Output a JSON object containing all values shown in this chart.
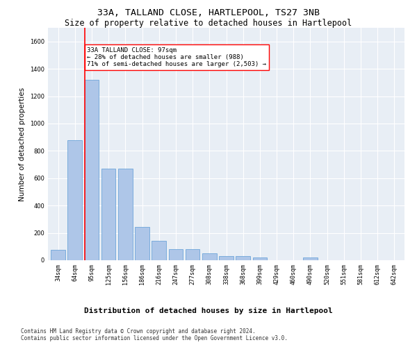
{
  "title": "33A, TALLAND CLOSE, HARTLEPOOL, TS27 3NB",
  "subtitle": "Size of property relative to detached houses in Hartlepool",
  "xlabel": "Distribution of detached houses by size in Hartlepool",
  "ylabel": "Number of detached properties",
  "bin_labels": [
    "34sqm",
    "64sqm",
    "95sqm",
    "125sqm",
    "156sqm",
    "186sqm",
    "216sqm",
    "247sqm",
    "277sqm",
    "308sqm",
    "338sqm",
    "368sqm",
    "399sqm",
    "429sqm",
    "460sqm",
    "490sqm",
    "520sqm",
    "551sqm",
    "581sqm",
    "612sqm",
    "642sqm"
  ],
  "bar_values": [
    75,
    880,
    1320,
    670,
    670,
    245,
    140,
    80,
    80,
    50,
    28,
    28,
    18,
    0,
    0,
    18,
    0,
    0,
    0,
    0,
    0
  ],
  "bar_color": "#aec6e8",
  "bar_edge_color": "#5b9bd5",
  "red_line_bin_index": 2,
  "annotation_text": "33A TALLAND CLOSE: 97sqm\n← 28% of detached houses are smaller (988)\n71% of semi-detached houses are larger (2,503) →",
  "ylim": [
    0,
    1700
  ],
  "yticks": [
    0,
    200,
    400,
    600,
    800,
    1000,
    1200,
    1400,
    1600
  ],
  "background_color": "#e8eef5",
  "grid_color": "#ffffff",
  "footnote": "Contains HM Land Registry data © Crown copyright and database right 2024.\nContains public sector information licensed under the Open Government Licence v3.0.",
  "title_fontsize": 9.5,
  "subtitle_fontsize": 8.5,
  "xlabel_fontsize": 8,
  "ylabel_fontsize": 7.5,
  "tick_fontsize": 6,
  "annotation_fontsize": 6.5,
  "footnote_fontsize": 5.5
}
